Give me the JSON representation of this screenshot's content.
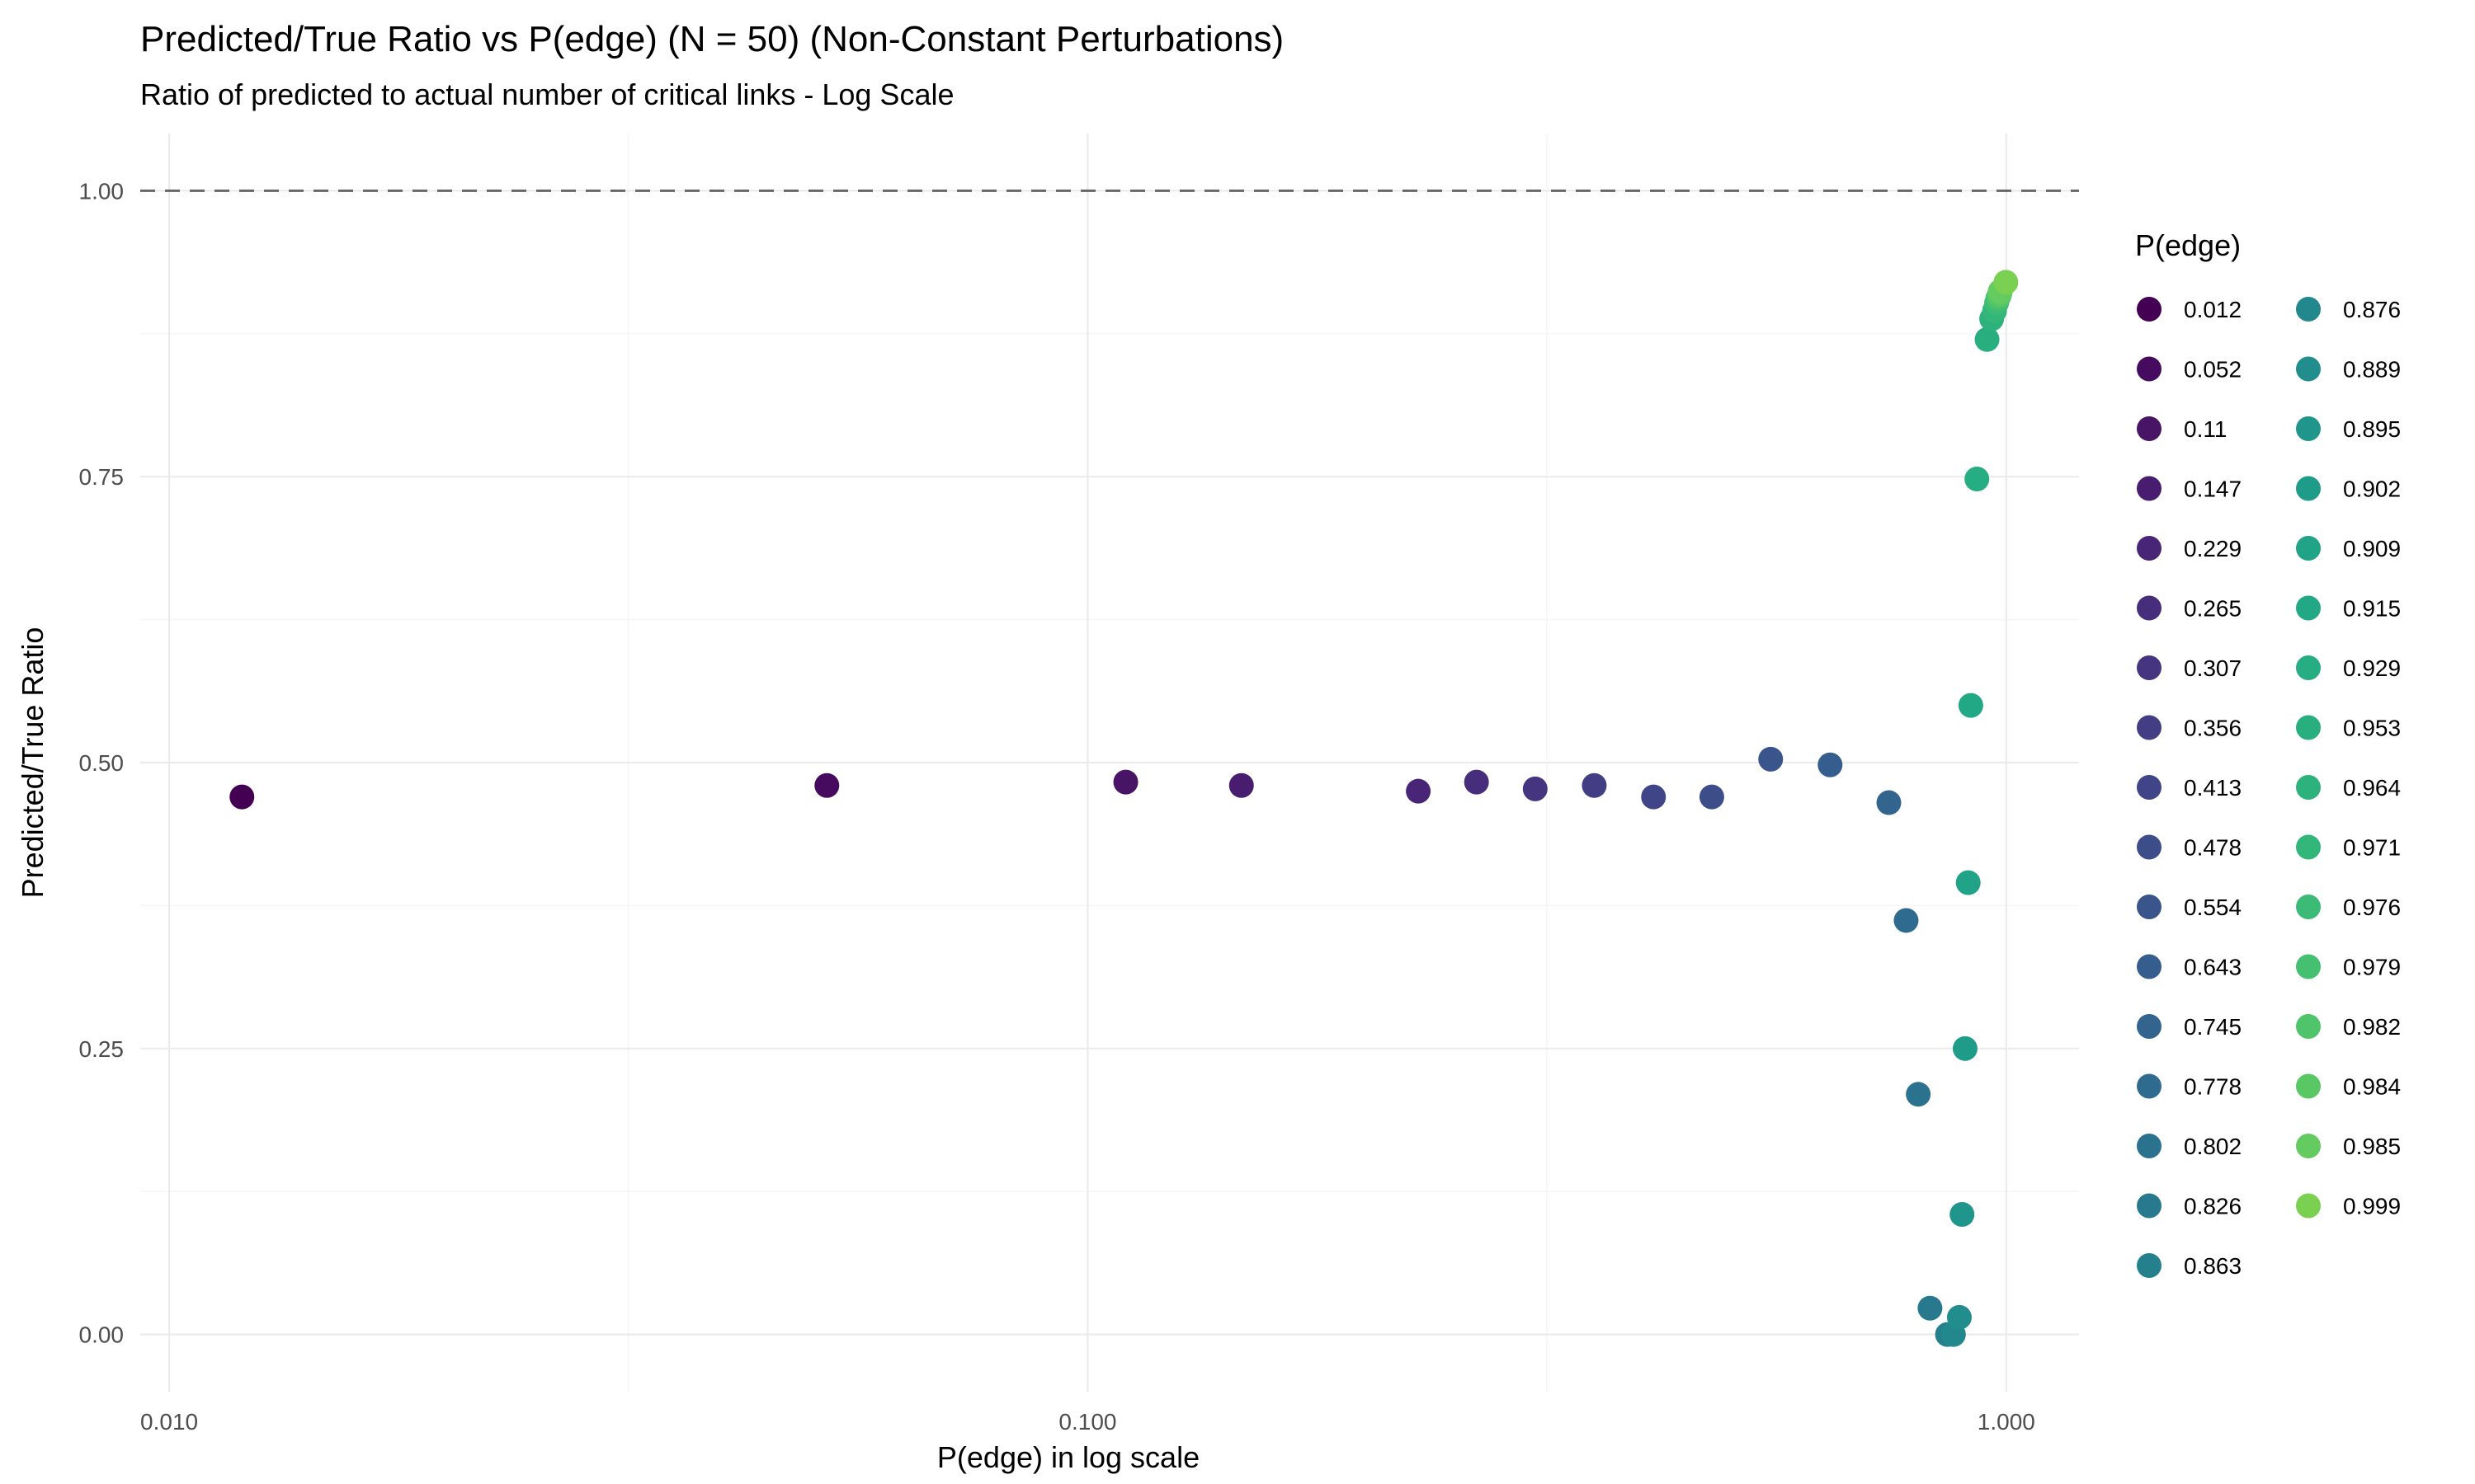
{
  "chart_data": {
    "type": "scatter",
    "title": "Predicted/True Ratio vs P(edge) (N = 50) (Non-Constant Perturbations)",
    "subtitle": "Ratio of predicted to actual number of critical links - Log Scale",
    "xlabel": "P(edge) in log scale",
    "ylabel": "Predicted/True Ratio",
    "x_scale": "log10",
    "xlim": [
      0.0093,
      1.2
    ],
    "ylim": [
      -0.05,
      1.05
    ],
    "x_ticks": [
      0.01,
      0.1,
      1.0
    ],
    "x_tick_labels": [
      "0.010",
      "0.100",
      "1.000"
    ],
    "x_minor_ticks": [
      0.0316,
      0.316
    ],
    "y_ticks": [
      0,
      0.25,
      0.5,
      0.75,
      1.0
    ],
    "y_tick_labels": [
      "0.00",
      "0.25",
      "0.50",
      "0.75",
      "1.00"
    ],
    "y_minor_ticks": [
      0.125,
      0.375,
      0.625,
      0.875
    ],
    "reference_line": {
      "y": 1.0,
      "style": "dashed",
      "color": "#666666"
    },
    "legend_title": "P(edge)",
    "legend_position": "right",
    "grid": true,
    "points": [
      {
        "label": "0.012",
        "x": 0.012,
        "y": 0.47,
        "color": "#440154"
      },
      {
        "label": "0.052",
        "x": 0.052,
        "y": 0.48,
        "color": "#460b5e"
      },
      {
        "label": "0.11",
        "x": 0.11,
        "y": 0.483,
        "color": "#471466"
      },
      {
        "label": "0.147",
        "x": 0.147,
        "y": 0.48,
        "color": "#481d6f"
      },
      {
        "label": "0.229",
        "x": 0.229,
        "y": 0.475,
        "color": "#482576"
      },
      {
        "label": "0.265",
        "x": 0.265,
        "y": 0.483,
        "color": "#472e7c"
      },
      {
        "label": "0.307",
        "x": 0.307,
        "y": 0.477,
        "color": "#453581"
      },
      {
        "label": "0.356",
        "x": 0.356,
        "y": 0.48,
        "color": "#433d84"
      },
      {
        "label": "0.413",
        "x": 0.413,
        "y": 0.47,
        "color": "#404588"
      },
      {
        "label": "0.478",
        "x": 0.478,
        "y": 0.47,
        "color": "#3d4d8a"
      },
      {
        "label": "0.554",
        "x": 0.554,
        "y": 0.503,
        "color": "#39558c"
      },
      {
        "label": "0.643",
        "x": 0.643,
        "y": 0.498,
        "color": "#355d8d"
      },
      {
        "label": "0.745",
        "x": 0.745,
        "y": 0.465,
        "color": "#32648e"
      },
      {
        "label": "0.778",
        "x": 0.778,
        "y": 0.362,
        "color": "#2e6b8e"
      },
      {
        "label": "0.802",
        "x": 0.802,
        "y": 0.21,
        "color": "#2b728e"
      },
      {
        "label": "0.826",
        "x": 0.826,
        "y": 0.023,
        "color": "#28798e"
      },
      {
        "label": "0.863",
        "x": 0.863,
        "y": 0.0,
        "color": "#25808e"
      },
      {
        "label": "0.876",
        "x": 0.876,
        "y": 0.0,
        "color": "#23878e"
      },
      {
        "label": "0.889",
        "x": 0.889,
        "y": 0.015,
        "color": "#218e8d"
      },
      {
        "label": "0.895",
        "x": 0.895,
        "y": 0.105,
        "color": "#1f958b"
      },
      {
        "label": "0.902",
        "x": 0.902,
        "y": 0.25,
        "color": "#1e9c89"
      },
      {
        "label": "0.909",
        "x": 0.909,
        "y": 0.395,
        "color": "#20a386"
      },
      {
        "label": "0.915",
        "x": 0.915,
        "y": 0.55,
        "color": "#22a884"
      },
      {
        "label": "0.929",
        "x": 0.929,
        "y": 0.748,
        "color": "#26ad81"
      },
      {
        "label": "0.953",
        "x": 0.953,
        "y": 0.87,
        "color": "#29af7f"
      },
      {
        "label": "0.964",
        "x": 0.964,
        "y": 0.888,
        "color": "#2db27d"
      },
      {
        "label": "0.971",
        "x": 0.971,
        "y": 0.895,
        "color": "#32b67a"
      },
      {
        "label": "0.976",
        "x": 0.976,
        "y": 0.902,
        "color": "#3bbb75"
      },
      {
        "label": "0.979",
        "x": 0.979,
        "y": 0.906,
        "color": "#45bf70"
      },
      {
        "label": "0.982",
        "x": 0.982,
        "y": 0.908,
        "color": "#4fc46a"
      },
      {
        "label": "0.984",
        "x": 0.984,
        "y": 0.91,
        "color": "#59c864"
      },
      {
        "label": "0.985",
        "x": 0.985,
        "y": 0.912,
        "color": "#63cb5f"
      },
      {
        "label": "0.999",
        "x": 0.999,
        "y": 0.92,
        "color": "#7ad151"
      }
    ]
  }
}
